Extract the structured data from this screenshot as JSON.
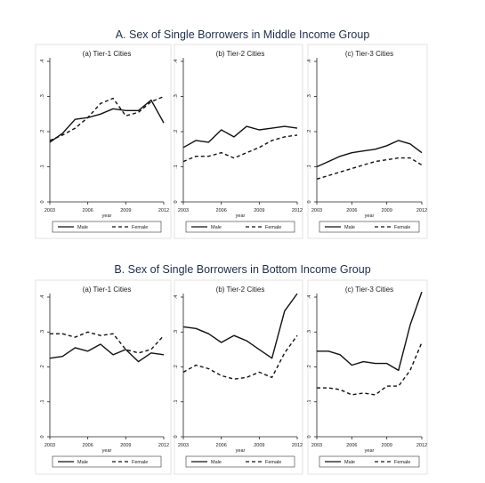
{
  "section_titles": {
    "a": "A. Sex of Single Borrowers in Middle Income Group",
    "b": "B. Sex of Single Borrowers in Bottom Income Group"
  },
  "chart_data": [
    {
      "type": "line",
      "section": "A",
      "title": "(a) Tier-1 Cities",
      "xlabel": "year",
      "ylabel": "",
      "x": [
        2003,
        2004,
        2005,
        2006,
        2007,
        2008,
        2009,
        2010,
        2011,
        2012
      ],
      "x_ticks": [
        "2003",
        "2006",
        "2009",
        "2012"
      ],
      "y_ticks": [
        "0",
        ".1",
        ".2",
        ".3",
        ".4"
      ],
      "xlim": [
        2003,
        2012
      ],
      "ylim": [
        0,
        0.4
      ],
      "grid": false,
      "legend_placement": "bottom",
      "series": [
        {
          "name": "Male",
          "style": "solid",
          "values": [
            0.17,
            0.195,
            0.235,
            0.24,
            0.25,
            0.265,
            0.26,
            0.26,
            0.29,
            0.225
          ]
        },
        {
          "name": "Female",
          "style": "dashed",
          "values": [
            0.175,
            0.19,
            0.21,
            0.24,
            0.28,
            0.295,
            0.245,
            0.255,
            0.285,
            0.3
          ]
        }
      ]
    },
    {
      "type": "line",
      "section": "A",
      "title": "(b) Tier-2 Cities",
      "xlabel": "year",
      "ylabel": "",
      "x": [
        2003,
        2004,
        2005,
        2006,
        2007,
        2008,
        2009,
        2010,
        2011,
        2012
      ],
      "x_ticks": [
        "2003",
        "2006",
        "2009",
        "2012"
      ],
      "y_ticks": [
        "0",
        ".1",
        ".2",
        ".3",
        ".4"
      ],
      "xlim": [
        2003,
        2012
      ],
      "ylim": [
        0,
        0.4
      ],
      "grid": false,
      "legend_placement": "bottom",
      "series": [
        {
          "name": "Male",
          "style": "solid",
          "values": [
            0.155,
            0.175,
            0.17,
            0.205,
            0.185,
            0.215,
            0.205,
            0.21,
            0.215,
            0.21
          ]
        },
        {
          "name": "Female",
          "style": "dashed",
          "values": [
            0.115,
            0.13,
            0.13,
            0.14,
            0.125,
            0.14,
            0.155,
            0.175,
            0.185,
            0.19
          ]
        }
      ]
    },
    {
      "type": "line",
      "section": "A",
      "title": "(c) Tier-3 Cities",
      "xlabel": "year",
      "ylabel": "",
      "x": [
        2003,
        2004,
        2005,
        2006,
        2007,
        2008,
        2009,
        2010,
        2011,
        2012
      ],
      "x_ticks": [
        "2003",
        "2006",
        "2009",
        "2012"
      ],
      "y_ticks": [
        "0",
        ".1",
        ".2",
        ".3",
        ".4"
      ],
      "xlim": [
        2003,
        2012
      ],
      "ylim": [
        0,
        0.4
      ],
      "grid": false,
      "legend_placement": "bottom",
      "series": [
        {
          "name": "Male",
          "style": "solid",
          "values": [
            0.1,
            0.115,
            0.13,
            0.14,
            0.145,
            0.15,
            0.16,
            0.175,
            0.165,
            0.14
          ]
        },
        {
          "name": "Female",
          "style": "dashed",
          "values": [
            0.065,
            0.075,
            0.085,
            0.095,
            0.105,
            0.115,
            0.12,
            0.125,
            0.125,
            0.105
          ]
        }
      ]
    },
    {
      "type": "line",
      "section": "B",
      "title": "(a) Tier-1 Cities",
      "xlabel": "year",
      "ylabel": "",
      "x": [
        2003,
        2004,
        2005,
        2006,
        2007,
        2008,
        2009,
        2010,
        2011,
        2012
      ],
      "x_ticks": [
        "2003",
        "2006",
        "2009",
        "2012"
      ],
      "y_ticks": [
        "0",
        ".1",
        ".2",
        ".3",
        ".4"
      ],
      "xlim": [
        2003,
        2012
      ],
      "ylim": [
        0,
        0.4
      ],
      "grid": false,
      "legend_placement": "bottom",
      "series": [
        {
          "name": "Male",
          "style": "solid",
          "values": [
            0.225,
            0.23,
            0.255,
            0.245,
            0.265,
            0.235,
            0.25,
            0.215,
            0.24,
            0.235
          ]
        },
        {
          "name": "Female",
          "style": "dashed",
          "values": [
            0.295,
            0.295,
            0.285,
            0.3,
            0.29,
            0.295,
            0.25,
            0.24,
            0.25,
            0.29
          ]
        }
      ]
    },
    {
      "type": "line",
      "section": "B",
      "title": "(b) Tier-2 Cities",
      "xlabel": "year",
      "ylabel": "",
      "x": [
        2003,
        2004,
        2005,
        2006,
        2007,
        2008,
        2009,
        2010,
        2011,
        2012
      ],
      "x_ticks": [
        "2003",
        "2006",
        "2009",
        "2012"
      ],
      "y_ticks": [
        "0",
        ".1",
        ".2",
        ".3",
        ".4"
      ],
      "xlim": [
        2003,
        2012
      ],
      "ylim": [
        0,
        0.4
      ],
      "grid": false,
      "legend_placement": "bottom",
      "series": [
        {
          "name": "Male",
          "style": "solid",
          "values": [
            0.315,
            0.31,
            0.295,
            0.27,
            0.29,
            0.275,
            0.25,
            0.225,
            0.36,
            0.41
          ]
        },
        {
          "name": "Female",
          "style": "dashed",
          "values": [
            0.185,
            0.205,
            0.195,
            0.175,
            0.165,
            0.17,
            0.185,
            0.17,
            0.24,
            0.29
          ]
        }
      ]
    },
    {
      "type": "line",
      "section": "B",
      "title": "(c) Tier-3 Cities",
      "xlabel": "year",
      "ylabel": "",
      "x": [
        2003,
        2004,
        2005,
        2006,
        2007,
        2008,
        2009,
        2010,
        2011,
        2012
      ],
      "x_ticks": [
        "2003",
        "2006",
        "2009",
        "2012"
      ],
      "y_ticks": [
        "0",
        ".1",
        ".2",
        ".3",
        ".4"
      ],
      "xlim": [
        2003,
        2012
      ],
      "ylim": [
        0,
        0.4
      ],
      "grid": false,
      "legend_placement": "bottom",
      "series": [
        {
          "name": "Male",
          "style": "solid",
          "values": [
            0.245,
            0.245,
            0.235,
            0.205,
            0.215,
            0.21,
            0.21,
            0.19,
            0.32,
            0.415
          ]
        },
        {
          "name": "Female",
          "style": "dashed",
          "values": [
            0.14,
            0.14,
            0.135,
            0.12,
            0.125,
            0.12,
            0.145,
            0.145,
            0.19,
            0.27
          ]
        }
      ]
    }
  ]
}
